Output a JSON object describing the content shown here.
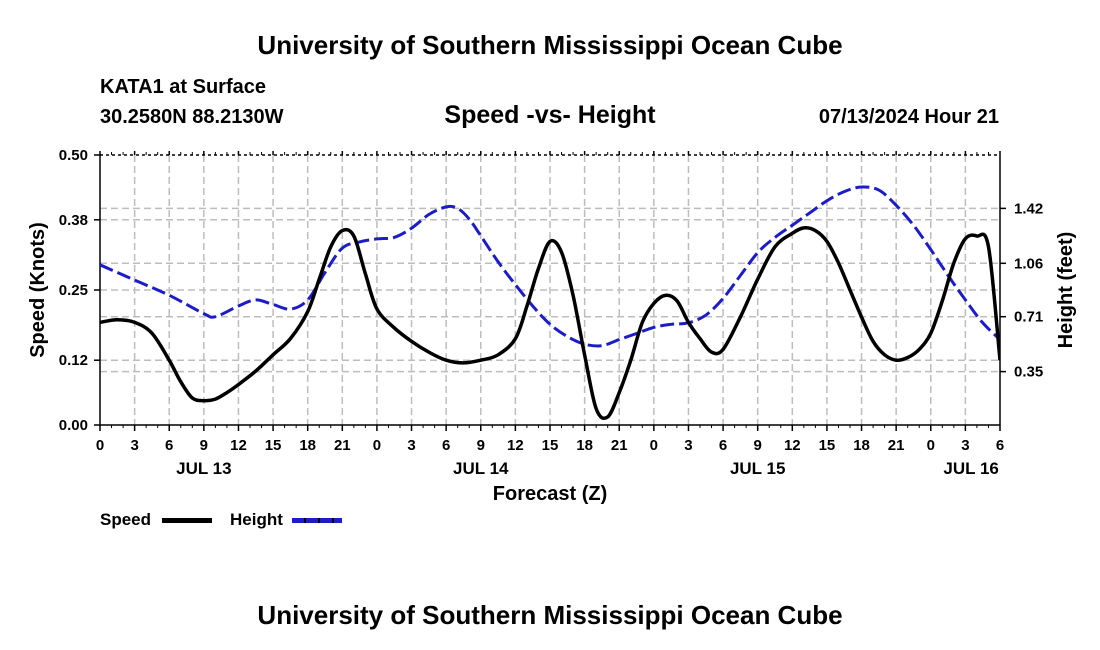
{
  "header": {
    "title": "University of Southern Mississippi Ocean Cube",
    "station": "KATA1 at Surface",
    "coords": "30.2580N  88.2130W",
    "chart_title": "Speed -vs- Height",
    "datetime": "07/13/2024 Hour 21"
  },
  "footer": {
    "title": "University of Southern Mississippi Ocean Cube"
  },
  "legend": {
    "speed_label": "Speed",
    "height_label": "Height",
    "speed_color": "#000000",
    "height_color": "#1c1cc8"
  },
  "chart_data": {
    "type": "line",
    "title": "Speed -vs- Height",
    "xlabel": "Forecast (Z)",
    "ylabel": "Speed (Knots)",
    "y2label": "Height (feet)",
    "xlim": [
      0,
      78
    ],
    "ylim": [
      0,
      0.5
    ],
    "y2lim": [
      0,
      1.77
    ],
    "grid": true,
    "legend": "bottom-left",
    "x_tick_step_hours": 3,
    "x_tick_labels": [
      "0",
      "3",
      "6",
      "9",
      "12",
      "15",
      "18",
      "21",
      "0",
      "3",
      "6",
      "9",
      "12",
      "15",
      "18",
      "21",
      "0",
      "3",
      "6",
      "9",
      "12",
      "15",
      "18",
      "21",
      "0",
      "3",
      "6"
    ],
    "y_ticks": [
      0.0,
      0.12,
      0.25,
      0.38,
      0.5
    ],
    "y_tick_labels": [
      "0.00",
      "0.12",
      "0.25",
      "0.38",
      "0.50"
    ],
    "y2_ticks": [
      0.35,
      0.71,
      1.06,
      1.42
    ],
    "y2_tick_labels": [
      "0.35",
      "0.71",
      "1.06",
      "1.42"
    ],
    "date_labels": [
      {
        "hour": 9,
        "label": "JUL 13"
      },
      {
        "hour": 33,
        "label": "JUL 14"
      },
      {
        "hour": 57,
        "label": "JUL 15"
      },
      {
        "hour": 75.5,
        "label": "JUL 16"
      }
    ],
    "series": [
      {
        "name": "Speed",
        "axis": "left",
        "style": "solid",
        "color": "#000000",
        "x": [
          0,
          1.5,
          3,
          4.5,
          6,
          7,
          8,
          9,
          10,
          11,
          12,
          13.5,
          15,
          16.5,
          18,
          19,
          20,
          21,
          22,
          23,
          24,
          25.5,
          27,
          28.5,
          30,
          31.5,
          33,
          34.5,
          36,
          37,
          38,
          39,
          40,
          41,
          42,
          43,
          44,
          45,
          46,
          47,
          48,
          49,
          50,
          51,
          52,
          53,
          54,
          55.5,
          57,
          58.5,
          60,
          61,
          62,
          63,
          64,
          65,
          66,
          67,
          68,
          69,
          70,
          71,
          72,
          73,
          74,
          75,
          76,
          77,
          78
        ],
        "y": [
          0.19,
          0.195,
          0.19,
          0.17,
          0.12,
          0.08,
          0.05,
          0.045,
          0.048,
          0.06,
          0.075,
          0.1,
          0.13,
          0.16,
          0.21,
          0.27,
          0.33,
          0.36,
          0.35,
          0.28,
          0.215,
          0.18,
          0.155,
          0.135,
          0.12,
          0.115,
          0.12,
          0.13,
          0.16,
          0.22,
          0.29,
          0.34,
          0.32,
          0.24,
          0.13,
          0.03,
          0.015,
          0.06,
          0.12,
          0.19,
          0.225,
          0.24,
          0.23,
          0.19,
          0.16,
          0.135,
          0.14,
          0.2,
          0.27,
          0.33,
          0.355,
          0.365,
          0.36,
          0.34,
          0.3,
          0.25,
          0.2,
          0.155,
          0.13,
          0.12,
          0.125,
          0.14,
          0.17,
          0.23,
          0.3,
          0.345,
          0.35,
          0.33,
          0.12
        ]
      },
      {
        "name": "Height",
        "axis": "right",
        "style": "dashed",
        "color": "#1c1cc8",
        "x": [
          0,
          3,
          6,
          9,
          10,
          12,
          13.5,
          15,
          16.5,
          18,
          19.5,
          21,
          22.5,
          24,
          25.5,
          27,
          28.5,
          30,
          31,
          32,
          33,
          34.5,
          36,
          37.5,
          39,
          40.5,
          42,
          43.5,
          45,
          46.5,
          48,
          49.5,
          51,
          52.5,
          54,
          55.5,
          57,
          58.5,
          60,
          61.5,
          63,
          64.5,
          66,
          67.5,
          69,
          70.5,
          72,
          73.5,
          75,
          76.5,
          78
        ],
        "y": [
          1.05,
          0.95,
          0.85,
          0.73,
          0.71,
          0.78,
          0.82,
          0.79,
          0.76,
          0.82,
          1.0,
          1.16,
          1.2,
          1.22,
          1.23,
          1.29,
          1.38,
          1.43,
          1.42,
          1.35,
          1.24,
          1.07,
          0.92,
          0.78,
          0.66,
          0.58,
          0.53,
          0.52,
          0.56,
          0.6,
          0.64,
          0.66,
          0.67,
          0.72,
          0.83,
          0.98,
          1.13,
          1.23,
          1.31,
          1.39,
          1.47,
          1.53,
          1.56,
          1.54,
          1.44,
          1.31,
          1.15,
          0.98,
          0.82,
          0.67,
          0.56
        ]
      }
    ]
  }
}
